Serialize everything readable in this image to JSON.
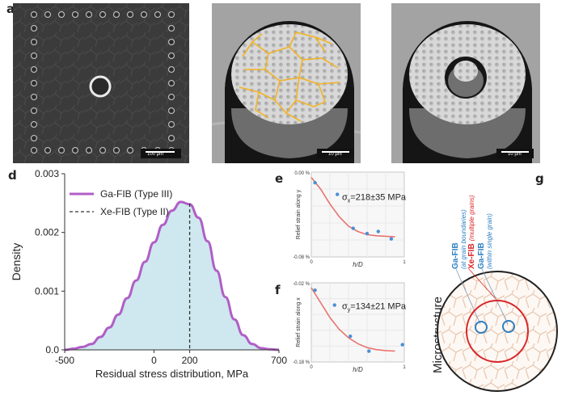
{
  "panels": {
    "a": {
      "label": "a",
      "scalebar": "100 µm"
    },
    "b": {
      "label": "b",
      "scalebar": "10 µm"
    },
    "c": {
      "label": "c",
      "scalebar": "10 µm"
    },
    "d": {
      "label": "d"
    },
    "e": {
      "label": "e"
    },
    "f": {
      "label": "f"
    },
    "g": {
      "label": "g"
    }
  },
  "chart_data": [
    {
      "id": "d",
      "type": "area",
      "title": "",
      "xlabel": "Residual stress distribution, MPa",
      "ylabel": "Density",
      "xlim": [
        -500,
        700
      ],
      "ylim": [
        0,
        0.003
      ],
      "xticks": [
        "-500",
        "0",
        "200",
        "700"
      ],
      "xtick_values": [
        -500,
        0,
        200,
        700
      ],
      "yticks": [
        "0.0",
        "0.001",
        "0.002",
        "0.003"
      ],
      "ytick_values": [
        0,
        0.001,
        0.002,
        0.003
      ],
      "legend_position": "top-left",
      "series": [
        {
          "name": "Ga-FIB (Type III)",
          "color": "#b05fc6",
          "fill": "#cfe8ef",
          "x": [
            -500,
            -450,
            -400,
            -350,
            -300,
            -250,
            -200,
            -150,
            -100,
            -50,
            0,
            50,
            100,
            150,
            200,
            250,
            300,
            350,
            400,
            450,
            500,
            550,
            600,
            650,
            700
          ],
          "y": [
            0.0,
            2e-05,
            5e-05,
            0.0001,
            0.00022,
            0.00038,
            0.0006,
            0.00088,
            0.00118,
            0.0015,
            0.00183,
            0.00213,
            0.00237,
            0.00252,
            0.00248,
            0.00225,
            0.00185,
            0.00135,
            0.0009,
            0.00052,
            0.00025,
            0.0001,
            3e-05,
            1e-05,
            0.0
          ]
        },
        {
          "name": "Xe-FIB (Type II)",
          "color": "#333333",
          "style": "dashed",
          "x_value": 200
        }
      ]
    },
    {
      "id": "e",
      "type": "scatter",
      "xlabel": "h/D",
      "ylabel": "Relief strain along y",
      "xticks": [
        "0",
        "1"
      ],
      "yticks": [
        "0.00 %",
        "-0.08 %"
      ],
      "xlim": [
        0,
        1
      ],
      "ylim": [
        -0.08,
        0.0
      ],
      "annotation": "σ",
      "annotation_sub": "x",
      "annotation_value": "=218±35 MPa",
      "points": {
        "x": [
          0.04,
          0.28,
          0.45,
          0.6,
          0.72,
          0.86
        ],
        "y": [
          -0.01,
          -0.021,
          -0.053,
          -0.058,
          -0.056,
          -0.063
        ]
      },
      "fit": {
        "x": [
          0.0,
          0.1,
          0.2,
          0.3,
          0.4,
          0.5,
          0.6,
          0.7,
          0.8,
          0.9
        ],
        "y": [
          -0.005,
          -0.016,
          -0.03,
          -0.042,
          -0.051,
          -0.056,
          -0.059,
          -0.06,
          -0.0605,
          -0.061
        ]
      },
      "point_color": "#4a8fd6",
      "fit_color": "#e8736f"
    },
    {
      "id": "f",
      "type": "scatter",
      "xlabel": "h/D",
      "ylabel": "Relief strain along x",
      "xticks": [
        "0",
        "1"
      ],
      "yticks": [
        "-0.02 %",
        "-0.18 %"
      ],
      "xlim": [
        0,
        1
      ],
      "ylim": [
        -0.18,
        -0.02
      ],
      "annotation": "σ",
      "annotation_sub": "y",
      "annotation_value": "=134±21 MPa",
      "points": {
        "x": [
          0.04,
          0.25,
          0.42,
          0.62,
          0.98
        ],
        "y": [
          -0.035,
          -0.065,
          -0.128,
          -0.158,
          -0.145
        ]
      },
      "fit": {
        "x": [
          0.0,
          0.1,
          0.2,
          0.3,
          0.4,
          0.5,
          0.6,
          0.7,
          0.8,
          0.9
        ],
        "y": [
          -0.03,
          -0.06,
          -0.09,
          -0.114,
          -0.131,
          -0.143,
          -0.151,
          -0.155,
          -0.157,
          -0.158
        ]
      },
      "point_color": "#4a8fd6",
      "fit_color": "#e8736f"
    }
  ],
  "schematic_g": {
    "title": "Microstructure",
    "labels": [
      {
        "main": "Ga-FIB",
        "sub": "(at grain boundaries)",
        "color": "#2e7fc1"
      },
      {
        "main": "Xe-FIB",
        "sub": "(multiple grains)",
        "color": "#d9262a"
      },
      {
        "main": "Ga-FIB",
        "sub": "(within single grain)",
        "color": "#2e7fc1"
      }
    ]
  }
}
